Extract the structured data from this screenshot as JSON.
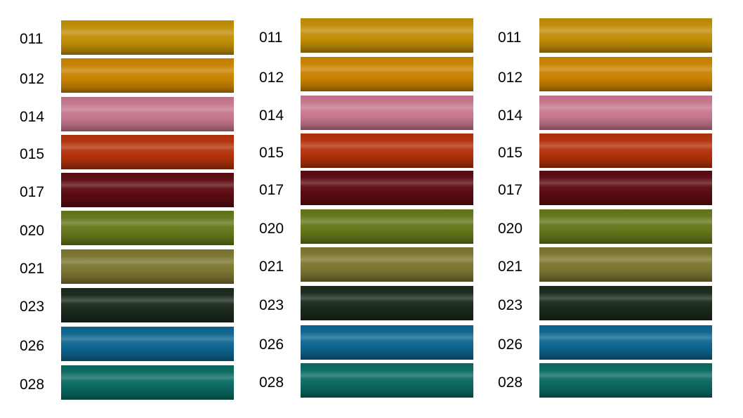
{
  "columns": [
    {
      "swatches": [
        {
          "code": "011",
          "color": "#c08d06"
        },
        {
          "code": "012",
          "color": "#c98200"
        },
        {
          "code": "014",
          "color": "#c5778d"
        },
        {
          "code": "015",
          "color": "#b2320b"
        },
        {
          "code": "017",
          "color": "#5c0b12"
        },
        {
          "code": "020",
          "color": "#64771a"
        },
        {
          "code": "021",
          "color": "#7c7631"
        },
        {
          "code": "023",
          "color": "#1b2a1d"
        },
        {
          "code": "026",
          "color": "#0d6590"
        },
        {
          "code": "028",
          "color": "#0a6a62"
        }
      ]
    },
    {
      "swatches": [
        {
          "code": "011",
          "color": "#c08d06"
        },
        {
          "code": "012",
          "color": "#c98200"
        },
        {
          "code": "014",
          "color": "#c5778d"
        },
        {
          "code": "015",
          "color": "#b2320b"
        },
        {
          "code": "017",
          "color": "#5c0b12"
        },
        {
          "code": "020",
          "color": "#64771a"
        },
        {
          "code": "021",
          "color": "#7c7631"
        },
        {
          "code": "023",
          "color": "#1b2a1d"
        },
        {
          "code": "026",
          "color": "#0d6590"
        },
        {
          "code": "028",
          "color": "#0a6a62"
        }
      ]
    },
    {
      "swatches": [
        {
          "code": "011",
          "color": "#c08d06"
        },
        {
          "code": "012",
          "color": "#c98200"
        },
        {
          "code": "014",
          "color": "#c5778d"
        },
        {
          "code": "015",
          "color": "#b2320b"
        },
        {
          "code": "017",
          "color": "#5c0b12"
        },
        {
          "code": "020",
          "color": "#64771a"
        },
        {
          "code": "021",
          "color": "#7c7631"
        },
        {
          "code": "023",
          "color": "#1b2a1d"
        },
        {
          "code": "026",
          "color": "#0d6590"
        },
        {
          "code": "028",
          "color": "#0a6a62"
        }
      ]
    }
  ]
}
